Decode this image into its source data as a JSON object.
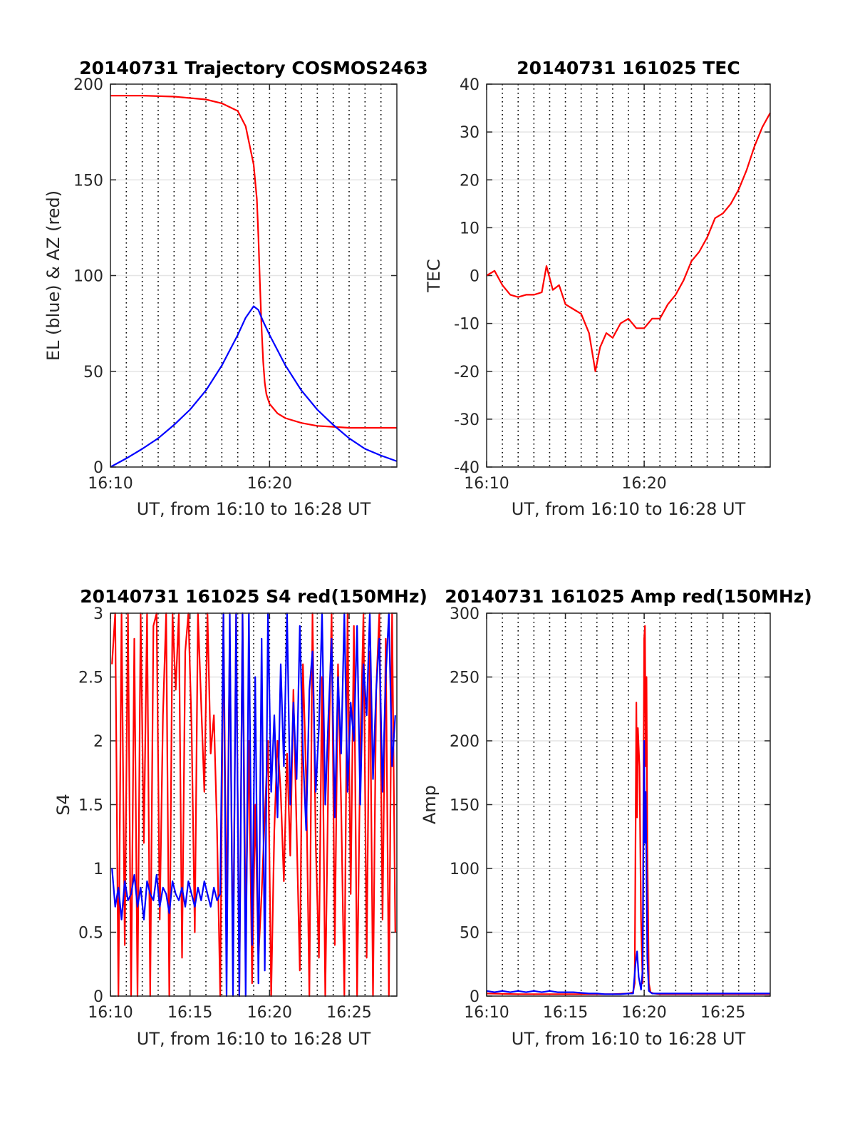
{
  "chart_data": [
    {
      "type": "line",
      "title": "20140731 Trajectory COSMOS2463",
      "xlabel": "UT, from 16:10 to 16:28 UT",
      "ylabel": "EL (blue) & AZ (red)",
      "xlim": [
        0,
        18
      ],
      "ylim": [
        0,
        200
      ],
      "xtick_values": [
        0,
        10
      ],
      "xtick_labels": [
        "16:10",
        "16:20"
      ],
      "ytick_values": [
        0,
        50,
        100,
        150,
        200
      ],
      "ytick_labels": [
        "0",
        "50",
        "100",
        "150",
        "200"
      ],
      "vgrid_minutes": [
        1,
        2,
        3,
        4,
        5,
        6,
        7,
        8,
        9,
        10,
        11,
        12,
        13,
        14,
        15,
        16,
        17
      ],
      "grid": true,
      "series": [
        {
          "color": "#ff0000",
          "x": [
            0,
            2,
            4,
            6,
            7,
            8,
            8.5,
            9,
            9.2,
            9.3,
            9.4,
            9.5,
            9.6,
            9.7,
            9.8,
            10,
            10.5,
            11,
            12,
            13,
            14,
            15,
            16,
            17,
            18
          ],
          "y": [
            194,
            194,
            193.5,
            192,
            190,
            186,
            178,
            158,
            140,
            120,
            95,
            72,
            55,
            44,
            38,
            33,
            28,
            25.5,
            23,
            21.5,
            21,
            20.5,
            20.5,
            20.5,
            20.5
          ]
        },
        {
          "color": "#0000ff",
          "x": [
            0,
            1,
            2,
            3,
            4,
            5,
            6,
            7,
            8,
            8.5,
            9,
            9.3,
            9.6,
            10,
            11,
            12,
            13,
            14,
            15,
            16,
            17,
            18
          ],
          "y": [
            0,
            4.5,
            9.5,
            15,
            22,
            30,
            40,
            53,
            69,
            78,
            84,
            82,
            76,
            69,
            53,
            40,
            30,
            22,
            15,
            9.5,
            6,
            3
          ]
        }
      ]
    },
    {
      "type": "line",
      "title": "20140731 161025 TEC",
      "xlabel": "UT, from 16:10 to 16:28 UT",
      "ylabel": "TEC",
      "xlim": [
        0,
        18
      ],
      "ylim": [
        -40,
        40
      ],
      "xtick_values": [
        0,
        10
      ],
      "xtick_labels": [
        "16:10",
        "16:20"
      ],
      "ytick_values": [
        -40,
        -30,
        -20,
        -10,
        0,
        10,
        20,
        30,
        40
      ],
      "ytick_labels": [
        "-40",
        "-30",
        "-20",
        "-10",
        "0",
        "10",
        "20",
        "30",
        "40"
      ],
      "vgrid_minutes": [
        1,
        2,
        3,
        4,
        5,
        6,
        7,
        8,
        9,
        10,
        11,
        12,
        13,
        14,
        15,
        16,
        17
      ],
      "grid": true,
      "series": [
        {
          "color": "#ff0000",
          "x": [
            0,
            0.5,
            1,
            1.5,
            2,
            2.5,
            3,
            3.5,
            3.8,
            4.2,
            4.6,
            5,
            5.5,
            6,
            6.5,
            6.9,
            7.2,
            7.6,
            8,
            8.5,
            9,
            9.5,
            10,
            10.5,
            11,
            11.5,
            12,
            12.5,
            13,
            13.5,
            14,
            14.5,
            15,
            15.5,
            16,
            16.5,
            17,
            17.5,
            18
          ],
          "y": [
            0,
            1,
            -2,
            -4,
            -4.5,
            -4,
            -4,
            -3.5,
            2,
            -3,
            -2,
            -6,
            -7,
            -8,
            -12,
            -20,
            -15,
            -12,
            -13,
            -10,
            -9,
            -11,
            -11,
            -9,
            -9,
            -6,
            -4,
            -1,
            3,
            5,
            8,
            12,
            13,
            15,
            18,
            22,
            27,
            31,
            34
          ]
        }
      ]
    },
    {
      "type": "line",
      "title": "20140731 161025 S4 red(150MHz)",
      "xlabel": "UT, from 16:10 to 16:28 UT",
      "ylabel": "S4",
      "xlim": [
        0,
        18
      ],
      "ylim": [
        0,
        3
      ],
      "xtick_values": [
        0,
        5,
        10,
        15
      ],
      "xtick_labels": [
        "16:10",
        "16:15",
        "16:20",
        "16:25"
      ],
      "ytick_values": [
        0,
        0.5,
        1,
        1.5,
        2,
        2.5,
        3
      ],
      "ytick_labels": [
        "0",
        "0.5",
        "1",
        "1.5",
        "2",
        "2.5",
        "3"
      ],
      "vgrid_minutes": [
        1,
        2,
        3,
        4,
        5,
        6,
        7,
        8,
        9,
        10,
        11,
        12,
        13,
        14,
        15,
        16,
        17
      ],
      "grid": true,
      "series": [
        {
          "color": "#ff0000",
          "x": [
            0.1,
            0.3,
            0.5,
            0.7,
            0.9,
            1.1,
            1.3,
            1.5,
            1.7,
            1.9,
            2.1,
            2.3,
            2.5,
            2.7,
            2.9,
            3.1,
            3.3,
            3.5,
            3.7,
            3.9,
            4.1,
            4.3,
            4.5,
            4.7,
            4.9,
            5.1,
            5.3,
            5.5,
            5.7,
            5.9,
            6.1,
            6.3,
            6.5,
            6.7,
            6.9,
            7.1,
            7.3,
            7.5,
            7.7,
            7.9,
            8.1,
            8.3,
            8.5,
            8.7,
            8.9,
            9.1,
            9.3,
            9.5,
            9.7,
            9.9,
            10.1,
            10.3,
            10.5,
            10.7,
            10.9,
            11.1,
            11.3,
            11.5,
            11.7,
            11.9,
            12.1,
            12.3,
            12.5,
            12.7,
            12.9,
            13.1,
            13.3,
            13.5,
            13.7,
            13.9,
            14.1,
            14.3,
            14.5,
            14.7,
            14.9,
            15.1,
            15.3,
            15.5,
            15.7,
            15.9,
            16.1,
            16.3,
            16.5,
            16.7,
            16.9,
            17.1,
            17.3,
            17.5,
            17.7,
            17.9
          ],
          "y": [
            2.6,
            3,
            0,
            3,
            0.4,
            3,
            0,
            2.8,
            0,
            3,
            1.2,
            3,
            0,
            2.9,
            3,
            0.6,
            2.2,
            3,
            0,
            3,
            2.4,
            3,
            0.3,
            2.7,
            3,
            2.1,
            0.5,
            3,
            2.3,
            1.6,
            3,
            1.9,
            2.2,
            1.3,
            0,
            3,
            0.6,
            2.8,
            0.2,
            3,
            0,
            3,
            0.5,
            2,
            0.1,
            1.5,
            0.3,
            0.8,
            1.4,
            2,
            0,
            1.3,
            2,
            1.6,
            0.9,
            1.9,
            1.1,
            2.4,
            1.3,
            0.2,
            2.6,
            1.7,
            0,
            3,
            1.2,
            0.3,
            2.5,
            0,
            1.8,
            3,
            0.4,
            2.6,
            1.5,
            0,
            3,
            0.8,
            2.9,
            0,
            1.9,
            3,
            0.3,
            2.7,
            0,
            2.4,
            3,
            0.6,
            2.8,
            0,
            3,
            0.5
          ]
        },
        {
          "color": "#0000ff",
          "x": [
            0.1,
            0.3,
            0.5,
            0.7,
            0.9,
            1.1,
            1.3,
            1.5,
            1.7,
            1.9,
            2.1,
            2.3,
            2.5,
            2.7,
            2.9,
            3.1,
            3.3,
            3.5,
            3.7,
            3.9,
            4.1,
            4.3,
            4.5,
            4.7,
            4.9,
            5.1,
            5.3,
            5.5,
            5.7,
            5.9,
            6.1,
            6.3,
            6.5,
            6.7,
            6.9,
            7.1,
            7.3,
            7.5,
            7.7,
            7.9,
            8.1,
            8.3,
            8.5,
            8.7,
            8.9,
            9.1,
            9.3,
            9.5,
            9.7,
            9.9,
            10.1,
            10.3,
            10.5,
            10.7,
            10.9,
            11.1,
            11.3,
            11.5,
            11.7,
            11.9,
            12.1,
            12.3,
            12.5,
            12.7,
            12.9,
            13.1,
            13.3,
            13.5,
            13.7,
            13.9,
            14.1,
            14.3,
            14.5,
            14.7,
            14.9,
            15.1,
            15.3,
            15.5,
            15.7,
            15.9,
            16.1,
            16.3,
            16.5,
            16.7,
            16.9,
            17.1,
            17.3,
            17.5,
            17.7,
            17.9
          ],
          "y": [
            1.0,
            0.7,
            0.85,
            0.6,
            0.9,
            0.75,
            0.8,
            0.95,
            0.7,
            0.85,
            0.6,
            0.9,
            0.8,
            0.75,
            0.95,
            0.7,
            0.85,
            0.8,
            0.65,
            0.9,
            0.8,
            0.75,
            0.85,
            0.7,
            0.9,
            0.8,
            0.7,
            0.85,
            0.75,
            0.9,
            0.8,
            0.7,
            0.85,
            0.75,
            0.8,
            3,
            0,
            3,
            0,
            3,
            0,
            3,
            0,
            3,
            0.4,
            2.5,
            0.1,
            2.8,
            0.2,
            3,
            1.6,
            2.2,
            1.4,
            2.6,
            1.8,
            3,
            1.5,
            2.3,
            1.7,
            2.9,
            1.9,
            1.3,
            2.4,
            2.7,
            1.6,
            2.1,
            3,
            1.5,
            2.2,
            2.8,
            1.4,
            2.5,
            1.9,
            3,
            1.6,
            2.3,
            2.0,
            2.9,
            1.5,
            2.6,
            2.2,
            3,
            1.7,
            2.4,
            2.8,
            1.6,
            2.5,
            3,
            1.8,
            2.2
          ]
        }
      ]
    },
    {
      "type": "line",
      "title": "20140731 161025 Amp red(150MHz)",
      "xlabel": "UT, from 16:10 to 16:28 UT",
      "ylabel": "Amp",
      "xlim": [
        0,
        18
      ],
      "ylim": [
        0,
        300
      ],
      "xtick_values": [
        0,
        5,
        10,
        15
      ],
      "xtick_labels": [
        "16:10",
        "16:15",
        "16:20",
        "16:25"
      ],
      "ytick_values": [
        0,
        50,
        100,
        150,
        200,
        250,
        300
      ],
      "ytick_labels": [
        "0",
        "50",
        "100",
        "150",
        "200",
        "250",
        "300"
      ],
      "vgrid_minutes": [
        1,
        2,
        3,
        4,
        5,
        6,
        7,
        8,
        9,
        10,
        11,
        12,
        13,
        14,
        15,
        16,
        17
      ],
      "grid": true,
      "series": [
        {
          "color": "#ff0000",
          "x": [
            0,
            2,
            4,
            6,
            8,
            9,
            9.3,
            9.4,
            9.5,
            9.55,
            9.6,
            9.7,
            9.8,
            9.9,
            10.0,
            10.05,
            10.1,
            10.15,
            10.2,
            10.3,
            10.4,
            10.6,
            11,
            13,
            15,
            18
          ],
          "y": [
            2,
            1.5,
            1.5,
            1.5,
            1.5,
            2,
            3,
            10,
            230,
            140,
            210,
            180,
            60,
            10,
            280,
            290,
            180,
            250,
            120,
            10,
            3,
            2,
            1.5,
            1.5,
            1.5,
            1.5
          ]
        },
        {
          "color": "#0000ff",
          "x": [
            0,
            0.5,
            1,
            1.5,
            2,
            2.5,
            3,
            3.5,
            4,
            4.5,
            5,
            5.5,
            6,
            6.5,
            7,
            7.5,
            8,
            8.5,
            9,
            9.3,
            9.45,
            9.55,
            9.65,
            9.8,
            9.9,
            10.0,
            10.05,
            10.1,
            10.2,
            10.3,
            10.5,
            11,
            11.5,
            12,
            12.5,
            13,
            13.5,
            14,
            14.5,
            15,
            15.5,
            16,
            16.5,
            17,
            17.5,
            18
          ],
          "y": [
            4,
            3,
            4,
            3,
            4,
            3,
            4,
            3,
            4,
            3,
            3,
            3,
            2.5,
            2,
            2,
            1.5,
            1.5,
            1.5,
            2,
            2,
            25,
            35,
            15,
            5,
            20,
            200,
            120,
            160,
            30,
            4,
            2,
            2,
            2,
            2,
            2,
            2,
            2,
            2,
            2,
            2,
            2,
            2,
            2,
            2,
            2,
            2
          ]
        }
      ]
    }
  ]
}
